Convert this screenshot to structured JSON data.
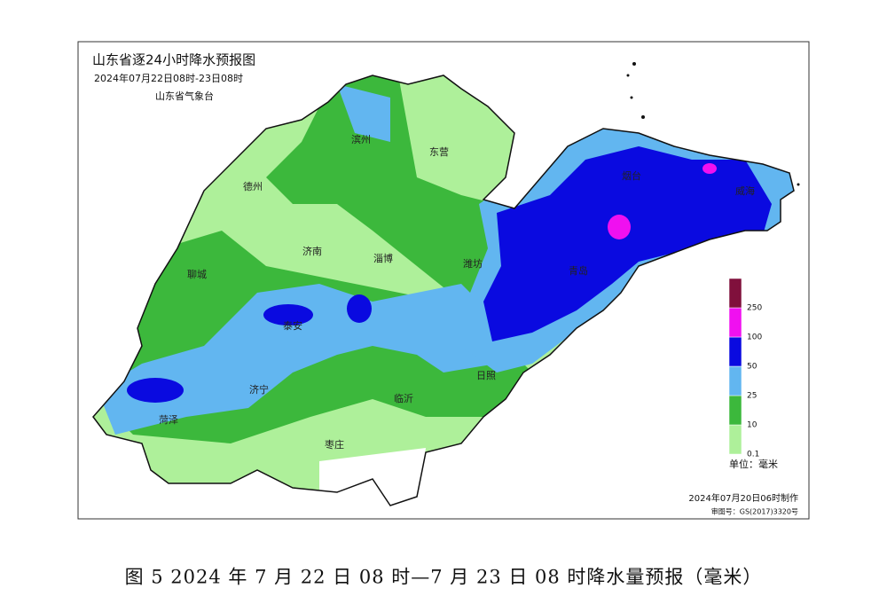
{
  "header": {
    "title": "山东省逐24小时降水预报图",
    "period": "2024年07月22日08时-23日08时",
    "issuer": "山东省气象台"
  },
  "cities": [
    "德州",
    "滨州",
    "东营",
    "烟台",
    "威海",
    "聊城",
    "济南",
    "淄博",
    "潍坊",
    "青岛",
    "泰安",
    "济宁",
    "菏泽",
    "临沂",
    "日照",
    "枣庄"
  ],
  "legend": {
    "breaks": [
      0.1,
      10,
      25,
      50,
      100,
      250
    ],
    "colors": [
      "#aef09a",
      "#3cb83c",
      "#62b6f0",
      "#0a0ae0",
      "#f010f0",
      "#80103c"
    ],
    "unit": "单位：毫米"
  },
  "footer": {
    "made": "2024年07月20日06时制作",
    "approval": "审图号：GS(2017)3320号"
  },
  "caption": "图 5 2024 年 7 月 22 日 08 时—7 月 23 日 08 时降水量预报（毫米）"
}
